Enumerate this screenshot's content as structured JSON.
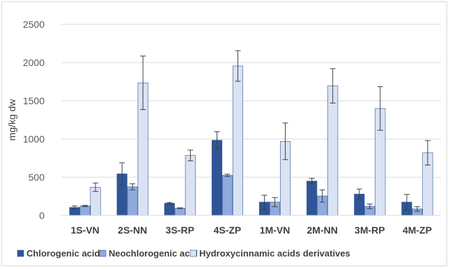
{
  "chart_data": {
    "type": "bar",
    "title": "",
    "xlabel": "",
    "ylabel": "mg/kg dw",
    "ylim": [
      0,
      2500
    ],
    "yticks": [
      0,
      500,
      1000,
      1500,
      2000,
      2500
    ],
    "grid": "horizontal",
    "legend_position": "bottom",
    "categories": [
      "1S-VN",
      "2S-NN",
      "3S-RP",
      "4S-ZP",
      "1M-VN",
      "2M-NN",
      "3M-RP",
      "4M-ZP"
    ],
    "series": [
      {
        "name": "Chlorogenic acid",
        "color": "#2f5597",
        "values": [
          105,
          545,
          160,
          985,
          175,
          450,
          280,
          175
        ],
        "errors": [
          20,
          145,
          10,
          110,
          90,
          35,
          65,
          100
        ]
      },
      {
        "name": "Neochlorogenic acid",
        "color": "#8faadc",
        "values": [
          125,
          375,
          95,
          525,
          175,
          255,
          120,
          85
        ],
        "errors": [
          8,
          40,
          5,
          15,
          60,
          80,
          30,
          30
        ]
      },
      {
        "name": "Hydroxycinnamic acids derivatives",
        "color": "#dae3f3",
        "values": [
          370,
          1735,
          785,
          1955,
          970,
          1695,
          1400,
          820
        ],
        "errors": [
          55,
          350,
          70,
          200,
          240,
          225,
          285,
          160
        ]
      }
    ]
  }
}
